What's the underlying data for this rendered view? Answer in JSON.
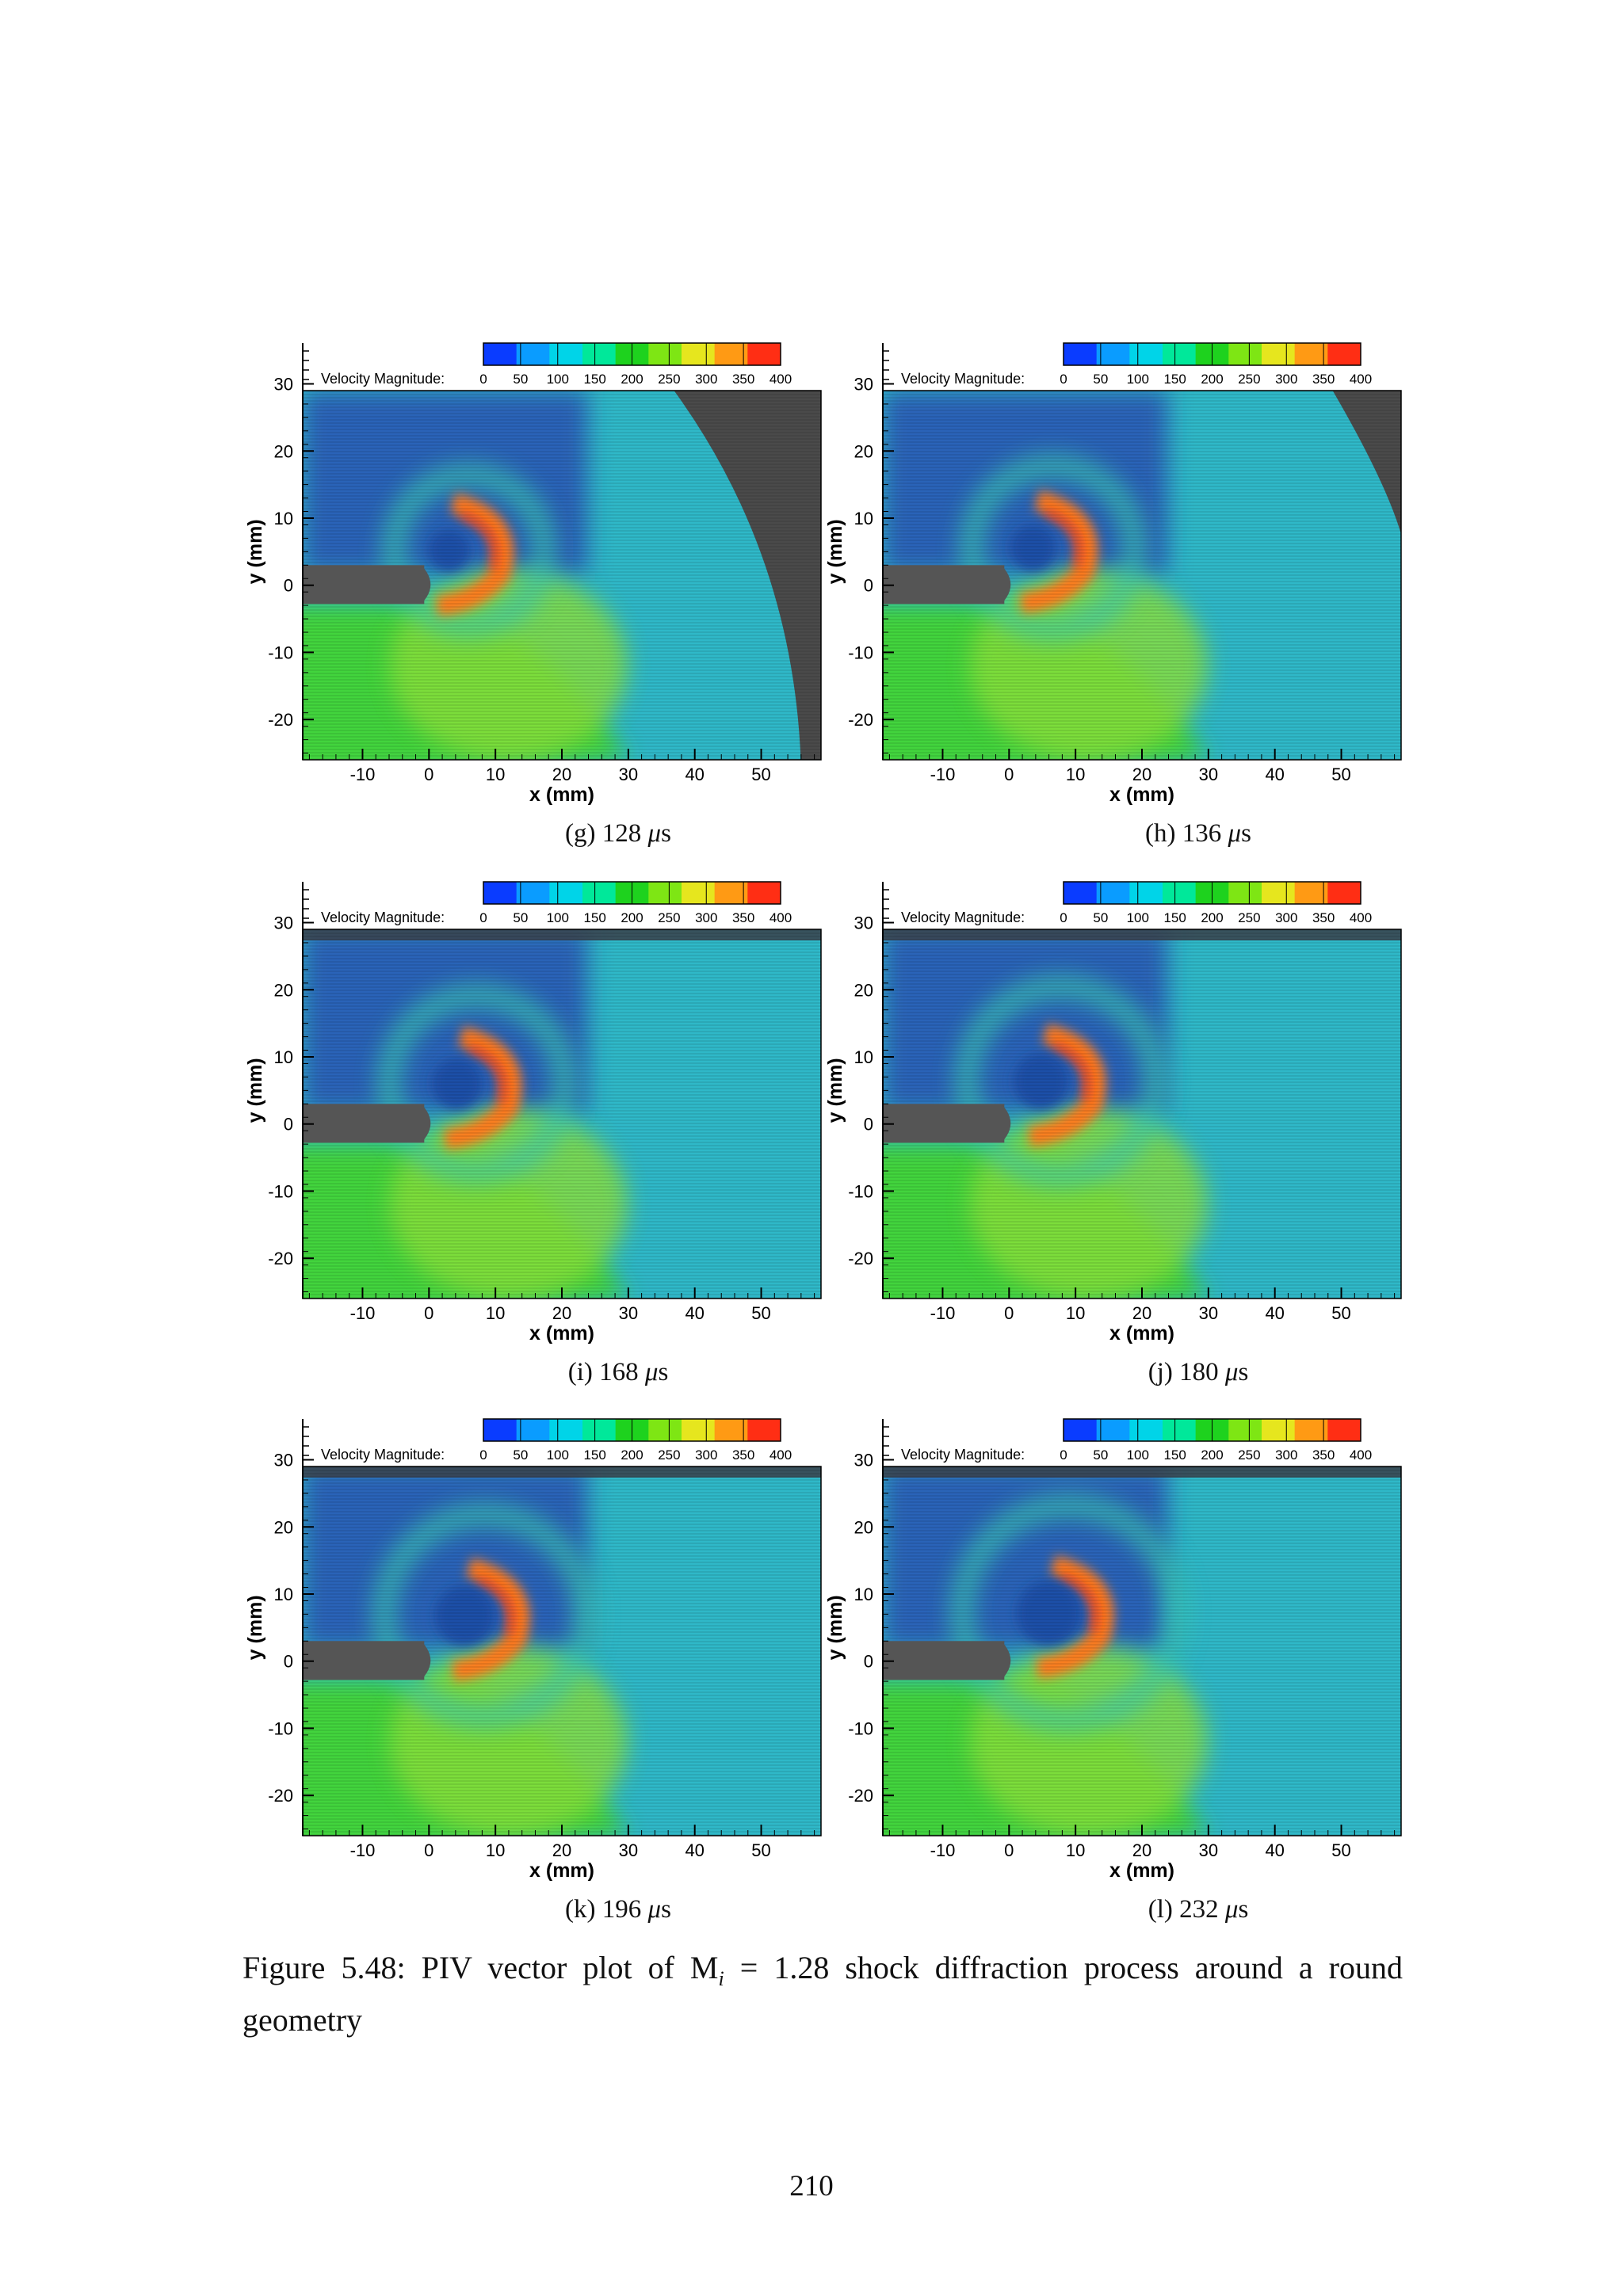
{
  "figure": {
    "caption_label": "Figure 5.48:",
    "caption_pre": "PIV vector plot of M",
    "caption_sub": "i",
    "caption_post": " = 1.28 shock diffraction process around a round geometry"
  },
  "page_number": "210",
  "colorbar": {
    "label": "Velocity Magnitude:",
    "ticks": [
      "0",
      "50",
      "100",
      "150",
      "200",
      "250",
      "300",
      "350",
      "400"
    ],
    "colors": [
      "#0a3cff",
      "#0a9cff",
      "#00d4e8",
      "#00e89a",
      "#1ed21e",
      "#7ee614",
      "#e6e61e",
      "#ff9a14",
      "#ff2e14"
    ]
  },
  "axes": {
    "xlabel": "x (mm)",
    "ylabel": "y (mm)",
    "x_ticks": [
      -10,
      0,
      10,
      20,
      30,
      40,
      50
    ],
    "y_ticks": [
      30,
      20,
      10,
      0,
      -10,
      -20
    ],
    "xlim": [
      -19,
      59
    ],
    "ylim": [
      -26,
      29
    ]
  },
  "chart_data": [
    {
      "type": "heatmap",
      "label": "(g)",
      "time": "128",
      "unit": "μs",
      "x_ticks": [
        -10,
        0,
        10,
        20,
        30,
        40,
        50
      ],
      "y_ticks": [
        30,
        20,
        10,
        0,
        -10,
        -20
      ],
      "xlabel": "x (mm)",
      "ylabel": "y (mm)",
      "colorbar_range": [
        0,
        400
      ],
      "colorbar_label": "Velocity Magnitude:"
    },
    {
      "type": "heatmap",
      "label": "(h)",
      "time": "136",
      "unit": "μs",
      "x_ticks": [
        -10,
        0,
        10,
        20,
        30,
        40,
        50
      ],
      "y_ticks": [
        30,
        20,
        10,
        0,
        -10,
        -20
      ],
      "xlabel": "x (mm)",
      "ylabel": "y (mm)",
      "colorbar_range": [
        0,
        400
      ],
      "colorbar_label": "Velocity Magnitude:"
    },
    {
      "type": "heatmap",
      "label": "(i)",
      "time": "168",
      "unit": "μs",
      "x_ticks": [
        -10,
        0,
        10,
        20,
        30,
        40,
        50
      ],
      "y_ticks": [
        30,
        20,
        10,
        0,
        -10,
        -20
      ],
      "xlabel": "x (mm)",
      "ylabel": "y (mm)",
      "colorbar_range": [
        0,
        400
      ],
      "colorbar_label": "Velocity Magnitude:"
    },
    {
      "type": "heatmap",
      "label": "(j)",
      "time": "180",
      "unit": "μs",
      "x_ticks": [
        -10,
        0,
        10,
        20,
        30,
        40,
        50
      ],
      "y_ticks": [
        30,
        20,
        10,
        0,
        -10,
        -20
      ],
      "xlabel": "x (mm)",
      "ylabel": "y (mm)",
      "colorbar_range": [
        0,
        400
      ],
      "colorbar_label": "Velocity Magnitude:"
    },
    {
      "type": "heatmap",
      "label": "(k)",
      "time": "196",
      "unit": "μs",
      "x_ticks": [
        -10,
        0,
        10,
        20,
        30,
        40,
        50
      ],
      "y_ticks": [
        30,
        20,
        10,
        0,
        -10,
        -20
      ],
      "xlabel": "x (mm)",
      "ylabel": "y (mm)",
      "colorbar_range": [
        0,
        400
      ],
      "colorbar_label": "Velocity Magnitude:"
    },
    {
      "type": "heatmap",
      "label": "(l)",
      "time": "232",
      "unit": "μs",
      "x_ticks": [
        -10,
        0,
        10,
        20,
        30,
        40,
        50
      ],
      "y_ticks": [
        30,
        20,
        10,
        0,
        -10,
        -20
      ],
      "xlabel": "x (mm)",
      "ylabel": "y (mm)",
      "colorbar_range": [
        0,
        400
      ],
      "colorbar_label": "Velocity Magnitude:"
    }
  ]
}
